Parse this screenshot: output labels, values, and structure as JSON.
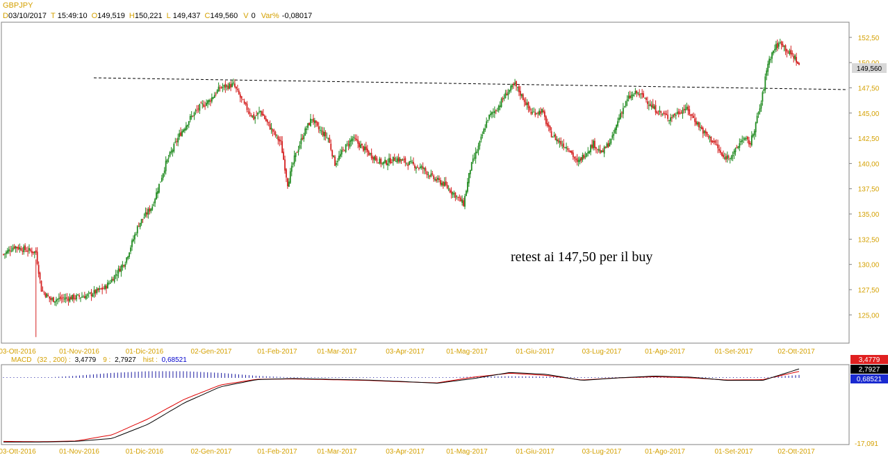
{
  "symbol": "GBPJPY",
  "info_bar": {
    "date_key": "D",
    "date": "03/10/2017",
    "time_key": "T",
    "time": "15:49:10",
    "open_key": "O",
    "open": "149,519",
    "high_key": "H",
    "high": "150,221",
    "low_key": "L",
    "low": "149,437",
    "close_key": "C",
    "close": "149,560",
    "vol_key": "V",
    "vol": "0",
    "var_key": "Var%",
    "var": "-0,08017"
  },
  "annotation": "retest ai 147,50 per il buy",
  "last_price_label": "149,560",
  "colors": {
    "up": "#1f8a1f",
    "down": "#d42020",
    "axis_text": "#d4a000",
    "macd": "#000000",
    "signal": "#dd0000",
    "hist": "#1a1aa0",
    "trendline": "#000000",
    "frame": "#808080"
  },
  "chart_data": [
    {
      "type": "candlestick",
      "title": "GBPJPY",
      "x_tick_labels": [
        "03-Ott-2016",
        "01-Nov-2016",
        "01-Dic-2016",
        "02-Gen-2017",
        "01-Feb-2017",
        "01-Mar-2017",
        "03-Apr-2017",
        "01-Mag-2017",
        "01-Giu-2017",
        "03-Lug-2017",
        "01-Ago-2017",
        "01-Set-2017",
        "02-Ott-2017"
      ],
      "y_tick_labels": [
        "152,50",
        "150,00",
        "147,50",
        "145,00",
        "142,50",
        "140,00",
        "137,50",
        "135,00",
        "132,50",
        "130,00",
        "127,50",
        "125,00"
      ],
      "ylim": [
        122.2,
        154.0
      ],
      "close_path": [
        [
          0,
          131.0
        ],
        [
          8,
          131.8
        ],
        [
          15,
          131.5
        ],
        [
          24,
          131.2
        ],
        [
          28,
          127.5
        ],
        [
          35,
          126.5
        ],
        [
          50,
          126.7
        ],
        [
          62,
          126.9
        ],
        [
          75,
          127.7
        ],
        [
          80,
          128.5
        ],
        [
          90,
          130.3
        ],
        [
          100,
          134.0
        ],
        [
          110,
          135.8
        ],
        [
          120,
          140.0
        ],
        [
          130,
          142.8
        ],
        [
          138,
          144.5
        ],
        [
          145,
          145.6
        ],
        [
          152,
          146.2
        ],
        [
          160,
          147.5
        ],
        [
          170,
          147.8
        ],
        [
          178,
          145.8
        ],
        [
          185,
          144.5
        ],
        [
          190,
          145.2
        ],
        [
          195,
          144.0
        ],
        [
          205,
          142.0
        ],
        [
          210,
          138.0
        ],
        [
          215,
          140.5
        ],
        [
          222,
          143.0
        ],
        [
          228,
          144.5
        ],
        [
          232,
          143.5
        ],
        [
          240,
          142.5
        ],
        [
          245,
          140.0
        ],
        [
          252,
          141.5
        ],
        [
          258,
          142.5
        ],
        [
          262,
          142.0
        ],
        [
          270,
          141.0
        ],
        [
          280,
          140.0
        ],
        [
          290,
          140.5
        ],
        [
          300,
          140.0
        ],
        [
          310,
          139.5
        ],
        [
          318,
          138.5
        ],
        [
          325,
          138.0
        ],
        [
          333,
          137.0
        ],
        [
          340,
          136.0
        ],
        [
          345,
          139.5
        ],
        [
          352,
          142.0
        ],
        [
          358,
          144.5
        ],
        [
          365,
          145.5
        ],
        [
          372,
          147.0
        ],
        [
          378,
          147.8
        ],
        [
          384,
          146.5
        ],
        [
          390,
          145.0
        ],
        [
          398,
          145.2
        ],
        [
          404,
          143.0
        ],
        [
          412,
          142.0
        ],
        [
          418,
          141.5
        ],
        [
          424,
          140.0
        ],
        [
          430,
          141.0
        ],
        [
          436,
          142.0
        ],
        [
          442,
          141.0
        ],
        [
          450,
          142.5
        ],
        [
          456,
          145.0
        ],
        [
          462,
          146.5
        ],
        [
          468,
          147.0
        ],
        [
          474,
          146.5
        ],
        [
          480,
          145.5
        ],
        [
          486,
          145.0
        ],
        [
          492,
          144.5
        ],
        [
          498,
          145.0
        ],
        [
          504,
          145.5
        ],
        [
          510,
          144.5
        ],
        [
          518,
          143.0
        ],
        [
          526,
          142.0
        ],
        [
          532,
          140.5
        ],
        [
          540,
          141.0
        ],
        [
          546,
          142.5
        ],
        [
          552,
          142.0
        ],
        [
          556,
          144.0
        ],
        [
          560,
          146.0
        ],
        [
          565,
          150.0
        ],
        [
          570,
          151.5
        ],
        [
          575,
          152.0
        ],
        [
          580,
          151.0
        ],
        [
          585,
          150.5
        ],
        [
          588,
          149.6
        ]
      ]
    },
    {
      "type": "line",
      "title": "MACD",
      "params": "(32 , 200)",
      "macd_value": "3,4779",
      "signal_period": "9",
      "signal_value": "2,7927",
      "hist_label": "hist",
      "hist_value": "0,68521",
      "y_tick_labels": [
        "-17,091"
      ],
      "series": [
        {
          "name": "MACD",
          "values": [
            -17.0,
            -17.0,
            -16.8,
            -16.0,
            -12.0,
            -6.0,
            -1.5,
            0.5,
            0.8,
            0.6,
            0.4,
            0.0,
            -0.5,
            0.8,
            2.5,
            2.0,
            0.3,
            1.0,
            1.5,
            1.2,
            0.3,
            0.3,
            3.5
          ]
        },
        {
          "name": "signal",
          "values": [
            -16.8,
            -16.9,
            -16.7,
            -15.0,
            -10.5,
            -5.0,
            -1.0,
            0.6,
            0.7,
            0.5,
            0.3,
            -0.1,
            -0.4,
            1.2,
            2.3,
            1.7,
            0.4,
            1.0,
            1.3,
            1.0,
            0.4,
            0.5,
            2.8
          ]
        },
        {
          "name": "hist",
          "values": [
            0,
            0,
            0.5,
            1.2,
            1.6,
            1.6,
            1.2,
            0.5,
            0.1,
            0.05,
            0.05,
            0.05,
            0.05,
            0.3,
            0.4,
            0.3,
            0.1,
            0.05,
            0.1,
            0.1,
            0.05,
            0.1,
            0.7
          ]
        }
      ]
    }
  ]
}
